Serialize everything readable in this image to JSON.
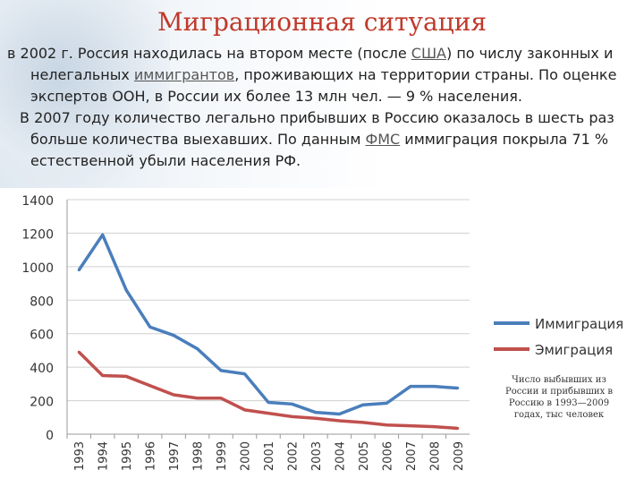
{
  "title": "Миграционная ситуация",
  "paragraph1": {
    "l1_a": "в 2002 г. Россия находилась на втором месте (после ",
    "l1_link": "США",
    "l1_b": ") по числу законных и",
    "l2_a": "нелегальных ",
    "l2_link": "иммигрантов",
    "l2_b": ", проживающих на территории страны. По оценке",
    "l3": "экспертов ООН, в России их более 13 млн чел. — 9 % населения."
  },
  "paragraph2": {
    "l1": "В 2007 году количество легально прибывших в Россию оказалось в шесть раз",
    "l2_a": "больше количества выехавших. По данным ",
    "l2_link": "ФМС",
    "l2_b": " иммиграция покрыла 71 %",
    "l3": "естественной убыли населения РФ."
  },
  "caption": "Число выбывших из России и прибывших в Россию в 1993—2009 годах, тыс человек",
  "chart_data": {
    "type": "line",
    "title": "",
    "xlabel": "",
    "ylabel": "",
    "ylim": [
      0,
      1400
    ],
    "yticks": [
      0,
      200,
      400,
      600,
      800,
      1000,
      1200,
      1400
    ],
    "grid": true,
    "legend": "right",
    "x": [
      "1993",
      "1994",
      "1995",
      "1996",
      "1997",
      "1998",
      "1999",
      "2000",
      "2001",
      "2002",
      "2003",
      "2004",
      "2005",
      "2006",
      "2007",
      "2008",
      "2009"
    ],
    "series": [
      {
        "name": "Иммиграция",
        "color": "#4a7ebb",
        "values": [
          980,
          1190,
          860,
          640,
          590,
          510,
          380,
          360,
          190,
          180,
          130,
          120,
          175,
          185,
          285,
          285,
          275
        ]
      },
      {
        "name": "Эмиграция",
        "color": "#c0504d",
        "values": [
          490,
          350,
          345,
          290,
          235,
          215,
          215,
          145,
          125,
          105,
          95,
          80,
          70,
          55,
          50,
          45,
          35
        ]
      }
    ]
  }
}
